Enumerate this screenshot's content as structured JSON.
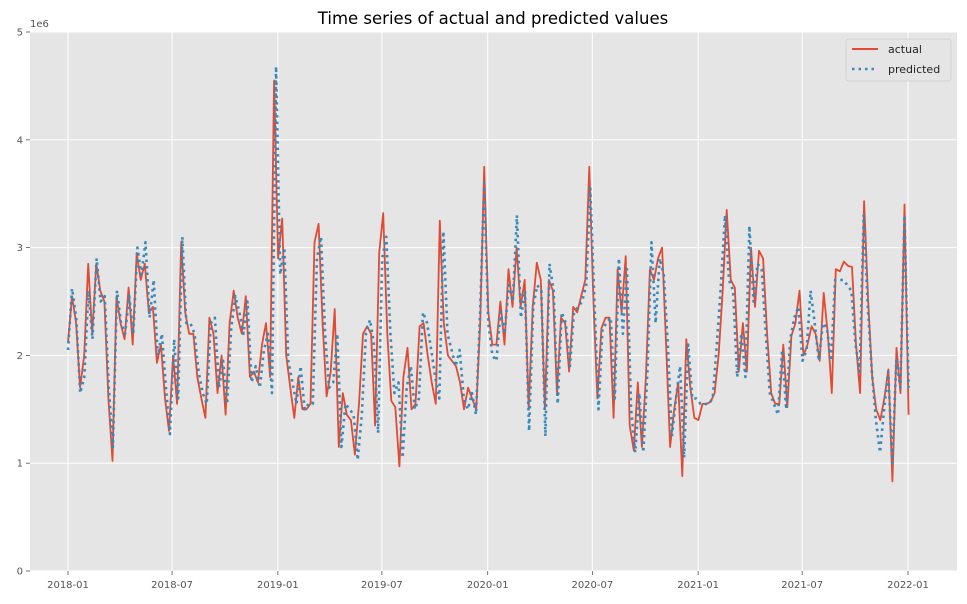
{
  "chart_data": {
    "type": "line",
    "title": "Time series of actual and predicted values",
    "xlabel": "",
    "ylabel": "",
    "y_offset_label": "1e6",
    "ylim": [
      0,
      5
    ],
    "y_ticks": [
      0,
      1,
      2,
      3,
      4,
      5
    ],
    "y_tick_labels": [
      "0",
      "1",
      "2",
      "3",
      "4",
      "5"
    ],
    "x_range": [
      "2017-11-01",
      "2022-03-01"
    ],
    "x_ticks": [
      "2018-01-01",
      "2018-07-01",
      "2019-01-01",
      "2019-07-01",
      "2020-01-01",
      "2020-07-01",
      "2021-01-01",
      "2021-07-01",
      "2022-01-01"
    ],
    "x_tick_labels": [
      "2018-01",
      "2018-07",
      "2019-01",
      "2019-07",
      "2020-01",
      "2020-07",
      "2021-01",
      "2021-07",
      "2022-01"
    ],
    "x_start": "2018-01-01",
    "x_end": "2022-01-02",
    "x_spacing": "evenly spaced (weekly)",
    "grid": true,
    "legend_position": "top-right",
    "unit_multiplier": 1000000,
    "series": [
      {
        "name": "actual",
        "color": "#E24A33",
        "style": "solid",
        "values": [
          2.12,
          2.55,
          2.3,
          1.7,
          2.0,
          2.85,
          2.2,
          2.85,
          2.6,
          2.5,
          1.6,
          1.02,
          2.55,
          2.3,
          2.15,
          2.63,
          2.1,
          2.95,
          2.7,
          2.85,
          2.4,
          2.45,
          1.93,
          2.1,
          1.6,
          1.3,
          2.0,
          1.55,
          3.05,
          2.4,
          2.2,
          2.2,
          1.8,
          1.6,
          1.42,
          2.35,
          2.2,
          1.65,
          2.0,
          1.45,
          2.3,
          2.6,
          2.35,
          2.2,
          2.55,
          1.8,
          1.85,
          1.75,
          2.1,
          2.3,
          1.8,
          4.55,
          2.9,
          3.27,
          2.0,
          1.7,
          1.42,
          1.8,
          1.5,
          1.5,
          1.55,
          3.05,
          3.22,
          2.3,
          1.62,
          1.85,
          2.43,
          1.15,
          1.65,
          1.45,
          1.4,
          1.08,
          1.55,
          2.2,
          2.27,
          2.2,
          1.35,
          2.95,
          3.32,
          2.2,
          1.58,
          1.52,
          0.97,
          1.8,
          2.07,
          1.5,
          1.55,
          2.27,
          2.3,
          2.0,
          1.75,
          1.55,
          3.25,
          2.3,
          2.0,
          1.95,
          1.9,
          1.75,
          1.5,
          1.7,
          1.6,
          1.5,
          2.3,
          3.75,
          2.4,
          2.1,
          2.1,
          2.5,
          2.1,
          2.8,
          2.45,
          3.0,
          2.45,
          2.7,
          1.5,
          2.45,
          2.86,
          2.7,
          1.5,
          2.7,
          2.6,
          1.65,
          2.35,
          2.3,
          1.85,
          2.45,
          2.4,
          2.55,
          2.7,
          3.75,
          2.5,
          1.6,
          2.25,
          2.35,
          2.35,
          1.42,
          2.8,
          2.4,
          2.92,
          1.35,
          1.12,
          1.75,
          1.15,
          1.8,
          2.8,
          2.7,
          2.9,
          3.0,
          2.1,
          1.15,
          1.5,
          1.75,
          0.88,
          2.15,
          1.7,
          1.42,
          1.4,
          1.55,
          1.55,
          1.57,
          1.65,
          2.0,
          2.6,
          3.35,
          2.7,
          2.63,
          1.85,
          2.3,
          1.85,
          3.0,
          2.45,
          2.97,
          2.9,
          2.2,
          1.65,
          1.55,
          1.55,
          2.1,
          1.52,
          2.18,
          2.3,
          2.6,
          2.0,
          2.1,
          2.27,
          2.2,
          1.95,
          2.58,
          2.2,
          1.65,
          2.8,
          2.78,
          2.87,
          2.83,
          2.82,
          2.1,
          1.65,
          3.43,
          2.5,
          1.8,
          1.5,
          1.4,
          1.6,
          1.87,
          0.83,
          2.07,
          1.65,
          3.4,
          1.45
        ]
      },
      {
        "name": "predicted",
        "color": "#348ABD",
        "style": "dotted",
        "values": [
          2.05,
          2.62,
          2.35,
          1.65,
          1.8,
          2.6,
          2.15,
          2.9,
          2.5,
          2.55,
          1.7,
          1.15,
          2.6,
          2.3,
          2.2,
          2.55,
          2.2,
          3.0,
          2.75,
          3.05,
          2.35,
          2.7,
          2.0,
          2.2,
          1.7,
          1.27,
          2.15,
          1.6,
          3.1,
          2.3,
          2.3,
          2.2,
          1.85,
          1.65,
          1.55,
          2.3,
          2.35,
          1.7,
          1.95,
          1.55,
          2.25,
          2.55,
          2.4,
          2.2,
          2.5,
          1.75,
          1.9,
          1.7,
          2.05,
          2.2,
          1.65,
          4.68,
          2.75,
          3.0,
          1.95,
          1.75,
          1.55,
          1.9,
          1.5,
          1.55,
          1.55,
          2.9,
          3.1,
          2.2,
          1.7,
          1.75,
          2.2,
          1.15,
          1.55,
          1.5,
          1.45,
          1.03,
          1.45,
          2.2,
          2.33,
          2.1,
          1.28,
          2.9,
          3.1,
          2.2,
          1.65,
          1.75,
          1.05,
          1.7,
          1.9,
          1.5,
          1.6,
          2.4,
          2.3,
          2.05,
          1.8,
          1.6,
          3.15,
          2.2,
          2.05,
          1.9,
          2.05,
          1.6,
          1.5,
          1.65,
          1.45,
          2.4,
          3.6,
          2.3,
          2.0,
          1.95,
          2.4,
          2.2,
          2.65,
          2.5,
          3.3,
          2.35,
          2.6,
          1.3,
          2.45,
          2.65,
          2.6,
          1.25,
          2.85,
          2.6,
          1.55,
          2.4,
          2.3,
          1.9,
          2.4,
          2.45,
          2.5,
          2.65,
          3.55,
          2.5,
          1.5,
          2.25,
          2.3,
          2.35,
          1.6,
          2.9,
          2.2,
          2.8,
          1.5,
          1.1,
          1.65,
          1.1,
          1.85,
          3.05,
          2.3,
          2.9,
          2.75,
          2.1,
          1.25,
          1.6,
          1.9,
          1.05,
          2.1,
          1.6,
          1.6,
          1.55,
          1.55,
          1.55,
          1.6,
          2.1,
          2.65,
          3.3,
          2.7,
          2.6,
          1.8,
          2.2,
          1.8,
          3.2,
          2.5,
          2.85,
          2.8,
          2.2,
          1.65,
          1.55,
          1.45,
          2.05,
          1.5,
          2.15,
          2.35,
          2.45,
          1.95,
          2.05,
          2.6,
          2.3,
          1.95,
          2.3,
          2.25,
          1.95,
          2.7,
          2.7,
          2.7,
          2.65,
          2.6,
          2.1,
          1.85,
          3.3,
          2.45,
          1.85,
          1.4,
          1.1,
          1.5,
          1.85,
          1.0,
          1.95,
          1.7,
          3.3,
          1.7
        ]
      }
    ]
  }
}
